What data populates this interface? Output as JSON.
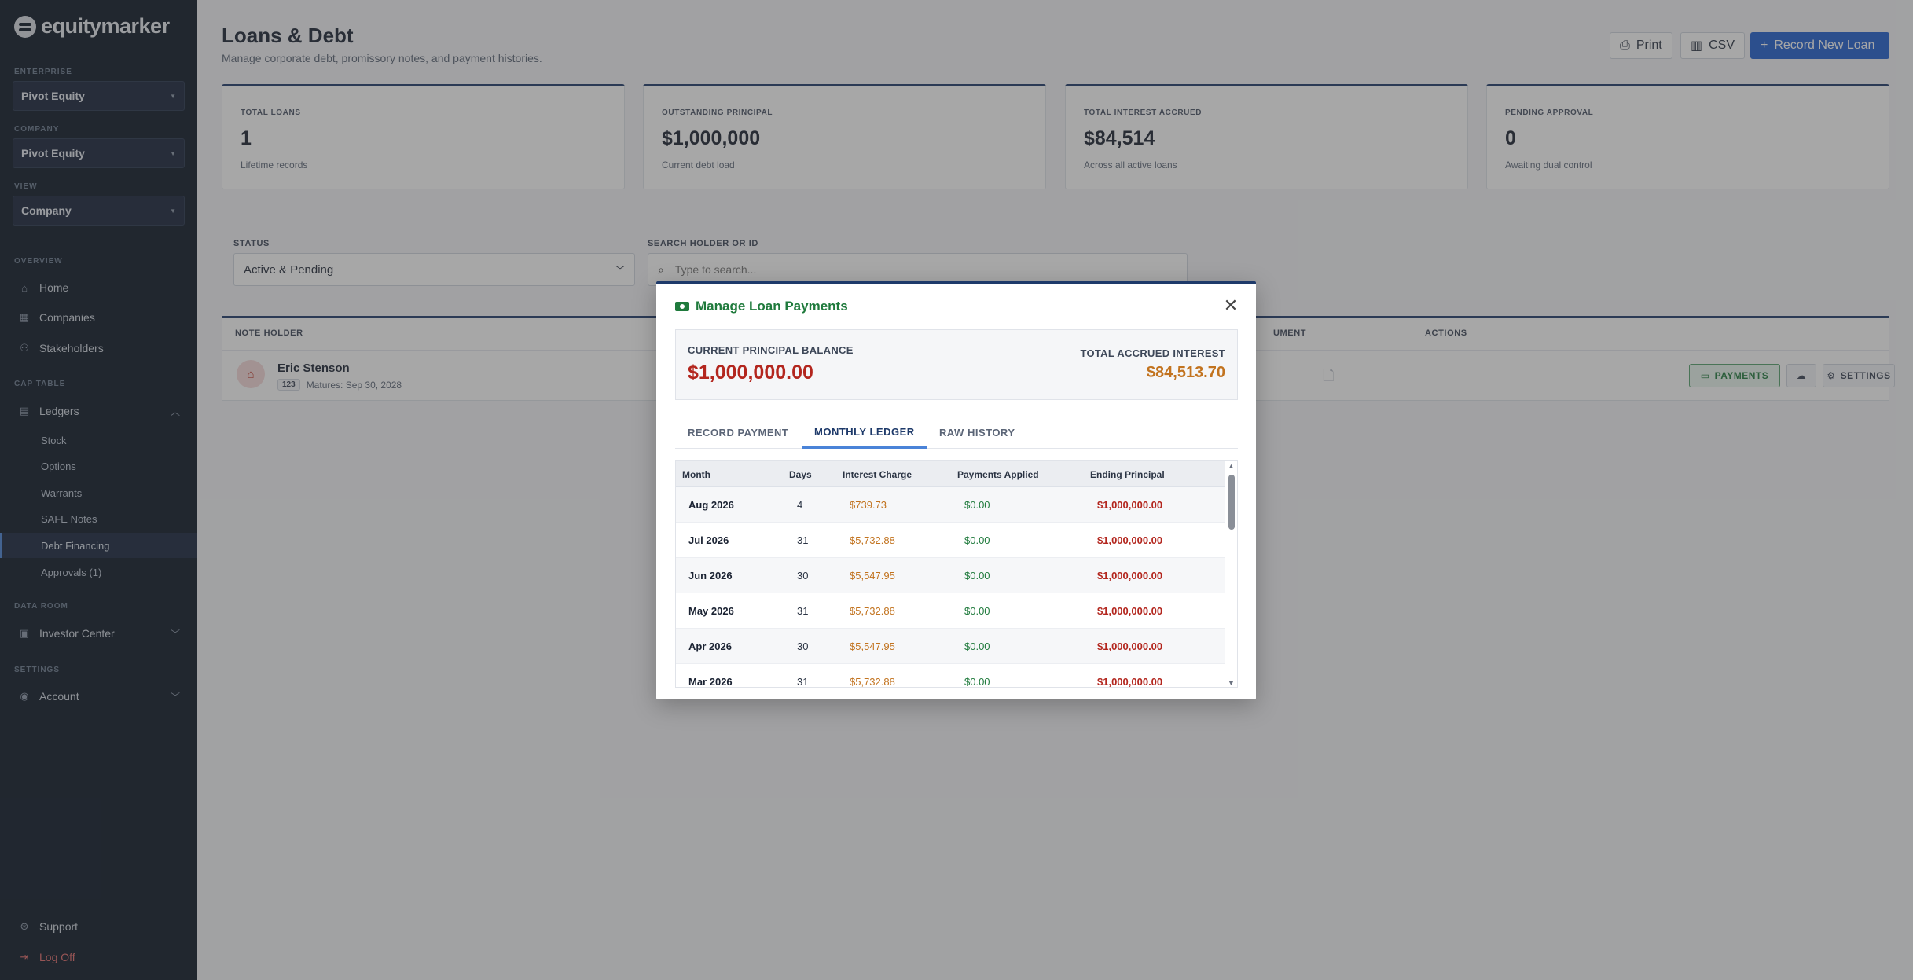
{
  "brand": {
    "name": "equitymarker"
  },
  "sidebar": {
    "enterprise_label": "ENTERPRISE",
    "enterprise_value": "Pivot Equity",
    "company_label": "COMPANY",
    "company_value": "Pivot Equity",
    "view_label": "VIEW",
    "view_value": "Company",
    "overview_label": "OVERVIEW",
    "home": "Home",
    "companies": "Companies",
    "stakeholders": "Stakeholders",
    "cap_table_label": "CAP TABLE",
    "ledgers": "Ledgers",
    "ledger_items": [
      "Stock",
      "Options",
      "Warrants",
      "SAFE Notes",
      "Debt Financing",
      "Approvals (1)"
    ],
    "data_room_label": "DATA ROOM",
    "investor_center": "Investor Center",
    "settings_label": "SETTINGS",
    "account": "Account",
    "support": "Support",
    "log_off": "Log Off"
  },
  "header": {
    "title": "Loans & Debt",
    "subtitle": "Manage corporate debt, promissory notes, and payment histories.",
    "print_label": "Print",
    "csv_label": "CSV",
    "record_label": "Record New Loan"
  },
  "stats": [
    {
      "label": "TOTAL LOANS",
      "value": "1",
      "sub": "Lifetime records"
    },
    {
      "label": "OUTSTANDING PRINCIPAL",
      "value": "$1,000,000",
      "sub": "Current debt load"
    },
    {
      "label": "TOTAL INTEREST ACCRUED",
      "value": "$84,514",
      "sub": "Across all active loans"
    },
    {
      "label": "PENDING APPROVAL",
      "value": "0",
      "sub": "Awaiting dual control"
    }
  ],
  "filters": {
    "status_label": "STATUS",
    "status_value": "Active & Pending",
    "search_label": "SEARCH HOLDER OR ID",
    "search_placeholder": "Type to search..."
  },
  "table": {
    "col_note_holder": "NOTE HOLDER",
    "col_document": "UMENT",
    "col_actions": "ACTIONS",
    "holder_name": "Eric Stenson",
    "holder_badge": "123",
    "holder_maturity": "Matures: Sep 30, 2028",
    "payments_label": "PAYMENTS",
    "settings_label": "SETTINGS"
  },
  "modal": {
    "title": "Manage Loan Payments",
    "principal_label": "CURRENT PRINCIPAL BALANCE",
    "principal_value": "$1,000,000.00",
    "interest_label": "TOTAL ACCRUED INTEREST",
    "interest_value": "$84,513.70",
    "tabs": [
      "RECORD PAYMENT",
      "MONTHLY LEDGER",
      "RAW HISTORY"
    ],
    "columns": [
      "Month",
      "Days",
      "Interest Charge",
      "Payments Applied",
      "Ending Principal"
    ],
    "rows": [
      {
        "month": "Aug 2026",
        "days": "4",
        "interest": "$739.73",
        "payments": "$0.00",
        "ending": "$1,000,000.00"
      },
      {
        "month": "Jul 2026",
        "days": "31",
        "interest": "$5,732.88",
        "payments": "$0.00",
        "ending": "$1,000,000.00"
      },
      {
        "month": "Jun 2026",
        "days": "30",
        "interest": "$5,547.95",
        "payments": "$0.00",
        "ending": "$1,000,000.00"
      },
      {
        "month": "May 2026",
        "days": "31",
        "interest": "$5,732.88",
        "payments": "$0.00",
        "ending": "$1,000,000.00"
      },
      {
        "month": "Apr 2026",
        "days": "30",
        "interest": "$5,547.95",
        "payments": "$0.00",
        "ending": "$1,000,000.00"
      },
      {
        "month": "Mar 2026",
        "days": "31",
        "interest": "$5,732.88",
        "payments": "$0.00",
        "ending": "$1,000,000.00"
      }
    ]
  },
  "colors": {
    "sidebar_bg": "#0b1626",
    "primary": "#1f5fd0",
    "accent_navy": "#1e3a6a",
    "green": "#1f7a3c",
    "red": "#b3261e",
    "orange": "#c2731f"
  }
}
